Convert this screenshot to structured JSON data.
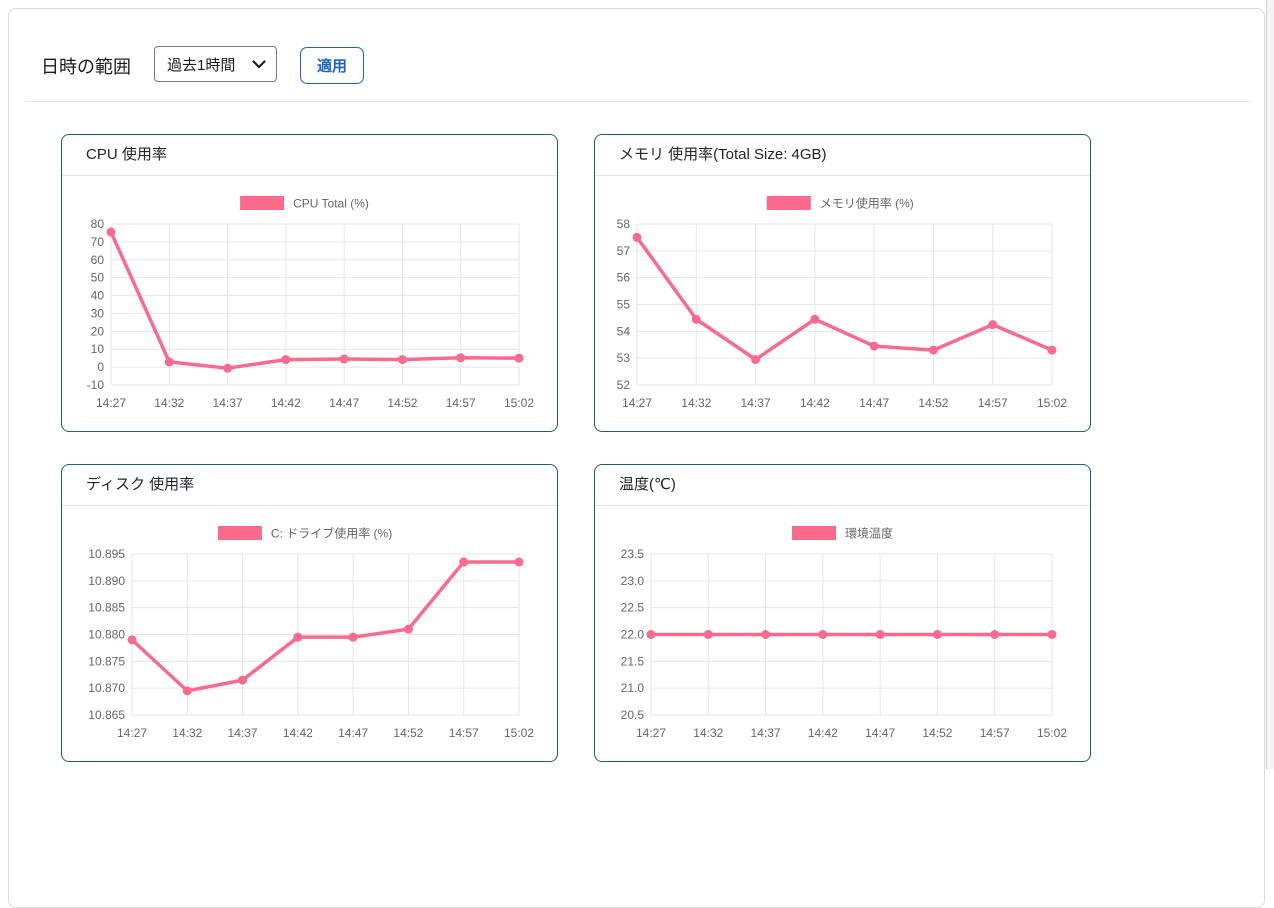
{
  "header": {
    "range_label": "日時の範囲",
    "range_value": "過去1時間",
    "apply_label": "適用"
  },
  "colors": {
    "series_pink": "#F96A8D",
    "card_border": "#1b5e73",
    "button_blue": "#1e64c8",
    "grid_gray": "#e6e6e6",
    "tick_gray": "#666666"
  },
  "chart_data": [
    {
      "type": "line",
      "title": "CPU 使用率",
      "categories": [
        "14:27",
        "14:32",
        "14:37",
        "14:42",
        "14:47",
        "14:52",
        "14:57",
        "15:02"
      ],
      "series": [
        {
          "name": "CPU Total (%)",
          "color": "#F96A8D",
          "values": [
            75.5,
            2.9,
            -0.6,
            4.2,
            4.5,
            4.2,
            5.2,
            5.0
          ]
        }
      ],
      "ylim": [
        -10,
        80
      ],
      "yticks": [
        "80",
        "70",
        "60",
        "50",
        "40",
        "30",
        "20",
        "10",
        "0",
        "-10"
      ],
      "xlabel": "",
      "ylabel": "",
      "grid": true,
      "legend_position": "top"
    },
    {
      "type": "line",
      "title": "メモリ 使用率(Total Size: 4GB)",
      "categories": [
        "14:27",
        "14:32",
        "14:37",
        "14:42",
        "14:47",
        "14:52",
        "14:57",
        "15:02"
      ],
      "series": [
        {
          "name": "メモリ使用率 (%)",
          "color": "#F96A8D",
          "values": [
            57.5,
            54.45,
            52.95,
            54.45,
            53.45,
            53.3,
            54.25,
            53.3
          ]
        }
      ],
      "ylim": [
        52,
        58
      ],
      "yticks": [
        "58",
        "57",
        "56",
        "55",
        "54",
        "53",
        "52"
      ],
      "xlabel": "",
      "ylabel": "",
      "grid": true,
      "legend_position": "top"
    },
    {
      "type": "line",
      "title": "ディスク 使用率",
      "categories": [
        "14:27",
        "14:32",
        "14:37",
        "14:42",
        "14:47",
        "14:52",
        "14:57",
        "15:02"
      ],
      "series": [
        {
          "name": "C: ドライブ使用率 (%)",
          "color": "#F96A8D",
          "values": [
            10.879,
            10.8695,
            10.8715,
            10.8795,
            10.8795,
            10.881,
            10.8935,
            10.8935
          ]
        }
      ],
      "ylim": [
        10.865,
        10.895
      ],
      "yticks": [
        "10.895",
        "10.890",
        "10.885",
        "10.880",
        "10.875",
        "10.870",
        "10.865"
      ],
      "xlabel": "",
      "ylabel": "",
      "grid": true,
      "legend_position": "top"
    },
    {
      "type": "line",
      "title": "温度(℃)",
      "categories": [
        "14:27",
        "14:32",
        "14:37",
        "14:42",
        "14:47",
        "14:52",
        "14:57",
        "15:02"
      ],
      "series": [
        {
          "name": "環境温度",
          "color": "#F96A8D",
          "values": [
            22,
            22,
            22,
            22,
            22,
            22,
            22,
            22
          ]
        }
      ],
      "ylim": [
        20.5,
        23.5
      ],
      "yticks": [
        "23.5",
        "23.0",
        "22.5",
        "22.0",
        "21.5",
        "21.0",
        "20.5"
      ],
      "xlabel": "",
      "ylabel": "",
      "grid": true,
      "legend_position": "top"
    }
  ]
}
